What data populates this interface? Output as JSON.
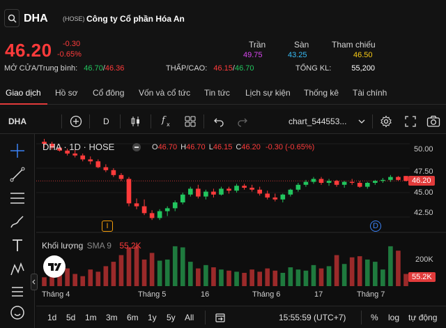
{
  "header": {
    "ticker": "DHA",
    "exchange": "(HOSE)",
    "company": "Công ty Cổ phần Hóa An",
    "price": "46.20",
    "change": "-0.30",
    "change_pct": "-0.65%",
    "tran_label": "Trần",
    "tran_value": "49.75",
    "san_label": "Sàn",
    "san_value": "43.25",
    "thamchieu_label": "Tham chiếu",
    "thamchieu_value": "46.50",
    "open_label": "MỞ CỬA/Trung bình:",
    "open_value": "46.70",
    "avg_value": "46.36",
    "lowhigh_label": "THẤP/CAO:",
    "low_value": "46.15",
    "high_value": "46.70",
    "vol_label": "TỔNG KL:",
    "vol_value": "55,200",
    "colors": {
      "down": "#ff3b3b",
      "up": "#22c55e",
      "ceiling": "#d946ef",
      "floor": "#38bdf8",
      "ref": "#facc15"
    }
  },
  "tabs": [
    "Giao dịch",
    "Hồ sơ",
    "Cổ đông",
    "Vốn và cổ tức",
    "Tin tức",
    "Lịch sự kiện",
    "Thống kê",
    "Tài chính"
  ],
  "toolbar": {
    "symbol": "DHA",
    "interval": "D",
    "chart_name": "chart_544553...",
    "icons": [
      "plus-circle-icon",
      "candles-icon",
      "fx-icon",
      "layout-icon",
      "undo-icon",
      "redo-icon",
      "gear-icon",
      "fullscreen-icon",
      "camera-icon"
    ]
  },
  "legend": {
    "title": "DHA · 1D · HOSE",
    "o_label": "O",
    "o": "46.70",
    "h_label": "H",
    "h": "46.70",
    "l_label": "L",
    "l": "46.15",
    "c_label": "C",
    "c": "46.20",
    "chg": "-0.30 (-0.65%)",
    "volume_label": "Khối lượng",
    "sma_label": "SMA 9",
    "volume_value": "55.2K"
  },
  "price_axis": {
    "ticks": [
      "50.00",
      "47.50",
      "45.00",
      "42.50"
    ],
    "current": "46.20",
    "vol_tick": "200K",
    "vol_current": "55.2K"
  },
  "markers": {
    "i_marker": "I",
    "d_marker": "D"
  },
  "time_axis": [
    "Tháng 4",
    "Tháng 5",
    "16",
    "Tháng 6",
    "17",
    "Tháng 7"
  ],
  "bottom": {
    "ranges": [
      "1d",
      "5d",
      "1m",
      "3m",
      "6m",
      "1y",
      "5y",
      "All"
    ],
    "time": "15:55:59 (UTC+7)",
    "pct": "%",
    "log": "log",
    "auto": "tự động"
  },
  "chart_data": {
    "type": "candlestick",
    "ylim": [
      41.0,
      51.0
    ],
    "candles": [
      [
        50.2,
        50.5,
        49.6,
        50.0
      ],
      [
        50.0,
        50.2,
        49.4,
        49.6
      ],
      [
        49.6,
        49.9,
        49.2,
        49.3
      ],
      [
        49.3,
        49.5,
        48.8,
        49.0
      ],
      [
        49.0,
        49.4,
        48.6,
        48.8
      ],
      [
        48.8,
        49.0,
        48.2,
        48.4
      ],
      [
        48.4,
        48.7,
        47.9,
        48.2
      ],
      [
        48.2,
        48.4,
        47.5,
        47.6
      ],
      [
        47.6,
        47.9,
        47.1,
        47.3
      ],
      [
        47.3,
        47.5,
        46.6,
        46.8
      ],
      [
        46.8,
        47.0,
        46.2,
        46.4
      ],
      [
        46.4,
        46.6,
        43.6,
        43.9
      ],
      [
        43.9,
        44.4,
        43.3,
        43.6
      ],
      [
        43.6,
        44.3,
        42.7,
        42.9
      ],
      [
        42.9,
        43.2,
        42.2,
        42.4
      ],
      [
        42.4,
        43.3,
        42.2,
        43.1
      ],
      [
        43.1,
        43.6,
        42.6,
        43.4
      ],
      [
        43.4,
        44.2,
        43.1,
        44.0
      ],
      [
        44.0,
        45.0,
        43.8,
        44.8
      ],
      [
        44.8,
        45.6,
        44.6,
        45.4
      ],
      [
        45.4,
        45.8,
        44.4,
        44.6
      ],
      [
        44.6,
        45.3,
        44.3,
        45.1
      ],
      [
        45.1,
        45.4,
        44.5,
        44.8
      ],
      [
        44.8,
        45.6,
        44.7,
        45.4
      ],
      [
        45.4,
        45.6,
        44.9,
        45.2
      ],
      [
        45.2,
        45.9,
        45.0,
        45.7
      ],
      [
        45.7,
        45.9,
        45.3,
        45.5
      ],
      [
        45.5,
        45.8,
        45.1,
        45.3
      ],
      [
        45.3,
        45.6,
        44.7,
        44.9
      ],
      [
        44.9,
        45.2,
        44.3,
        44.5
      ],
      [
        44.5,
        44.9,
        44.1,
        44.3
      ],
      [
        44.3,
        44.9,
        44.0,
        44.8
      ],
      [
        44.8,
        45.4,
        44.6,
        45.3
      ],
      [
        45.3,
        46.0,
        45.1,
        45.8
      ],
      [
        45.8,
        46.3,
        45.6,
        46.1
      ],
      [
        46.1,
        46.6,
        45.9,
        46.4
      ],
      [
        46.4,
        46.6,
        45.8,
        46.0
      ],
      [
        46.0,
        46.4,
        45.7,
        46.2
      ],
      [
        46.2,
        46.3,
        45.6,
        45.8
      ],
      [
        45.8,
        46.2,
        45.5,
        46.1
      ],
      [
        46.1,
        46.4,
        45.8,
        46.0
      ],
      [
        46.0,
        46.2,
        45.5,
        45.6
      ],
      [
        45.6,
        46.1,
        45.4,
        46.0
      ],
      [
        46.0,
        46.3,
        45.8,
        46.2
      ],
      [
        46.2,
        46.5,
        46.0,
        46.3
      ],
      [
        46.3,
        46.8,
        46.1,
        46.6
      ],
      [
        46.6,
        46.7,
        46.2,
        46.3
      ],
      [
        46.7,
        46.7,
        46.15,
        46.2
      ]
    ],
    "volumes": [
      40,
      60,
      70,
      80,
      55,
      45,
      75,
      65,
      90,
      110,
      140,
      175,
      180,
      120,
      150,
      115,
      120,
      180,
      175,
      110,
      80,
      95,
      85,
      75,
      70,
      65,
      60,
      75,
      65,
      80,
      70,
      60,
      85,
      75,
      70,
      95,
      80,
      90,
      140,
      100,
      130,
      135,
      120,
      110,
      75,
      180,
      160,
      55
    ],
    "vol_max": 230
  }
}
